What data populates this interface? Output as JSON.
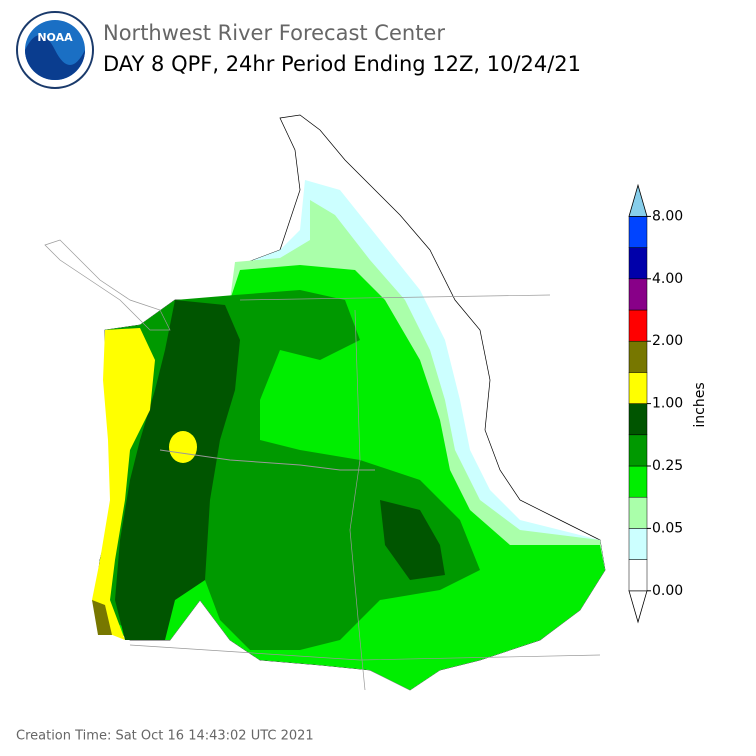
{
  "header": {
    "logo": "NOAA",
    "org": "Northwest River Forecast Center",
    "title": "DAY 8 QPF, 24hr Period Ending 12Z, 10/24/21"
  },
  "legend": {
    "unit": "inches",
    "colors": [
      "#ffffff",
      "#ffffff",
      "#ccffff",
      "#aaffaa",
      "#00ee00",
      "#009900",
      "#005500",
      "#ffff00",
      "#777700",
      "#ff0000",
      "#880088",
      "#0000aa",
      "#0044ff",
      "#87ceeb"
    ],
    "labels": [
      "0.00",
      "0.05",
      "0.25",
      "1.00",
      "2.00",
      "4.00",
      "8.00"
    ]
  },
  "footer": {
    "creation": "Creation Time: Sat Oct 16 14:43:02 UTC 2021"
  }
}
